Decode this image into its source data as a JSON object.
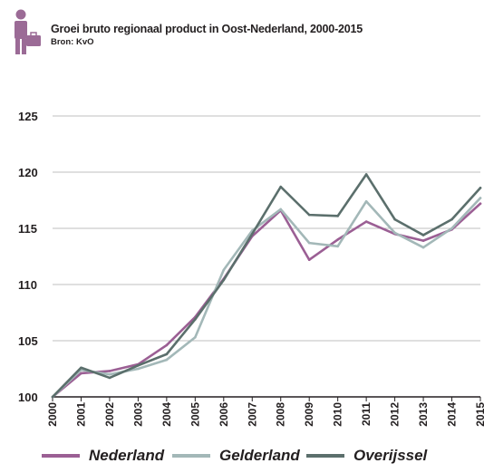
{
  "header": {
    "icon": "person-with-briefcase-icon",
    "title": "Groei bruto regionaal product in Oost-Nederland, 2000-2015",
    "source": "Bron: KvO"
  },
  "colors": {
    "icon": "#9b6b96",
    "nederland": "#9b5f94",
    "gelderland": "#a3b8b8",
    "overijssel": "#5b6f6c",
    "grid": "#bfbfbf",
    "axis": "#231f20"
  },
  "chart_data": {
    "type": "line",
    "x": [
      "2000",
      "2001",
      "2002",
      "2003",
      "2004",
      "2005",
      "2006",
      "2007",
      "2008",
      "2009",
      "2010",
      "2011",
      "2012",
      "2013",
      "2014",
      "2015"
    ],
    "ylim": [
      100,
      125
    ],
    "yticks": [
      100,
      105,
      110,
      115,
      120,
      125
    ],
    "grid": true,
    "legend": "bottom",
    "series": [
      {
        "name": "Nederland",
        "color": "#9b5f94",
        "values": [
          100.0,
          102.1,
          102.3,
          102.9,
          104.6,
          107.1,
          110.5,
          114.3,
          116.6,
          112.2,
          114.0,
          115.6,
          114.5,
          113.9,
          114.9,
          117.2
        ]
      },
      {
        "name": "Gelderland",
        "color": "#a3b8b8",
        "values": [
          100.0,
          102.4,
          102.0,
          102.5,
          103.3,
          105.3,
          111.3,
          114.8,
          116.7,
          113.7,
          113.4,
          117.4,
          114.6,
          113.3,
          115.0,
          117.7
        ]
      },
      {
        "name": "Overijssel",
        "color": "#5b6f6c",
        "values": [
          100.0,
          102.6,
          101.7,
          102.8,
          103.8,
          106.9,
          110.4,
          114.5,
          118.7,
          116.2,
          116.1,
          119.8,
          115.8,
          114.4,
          115.8,
          118.6
        ]
      }
    ]
  }
}
